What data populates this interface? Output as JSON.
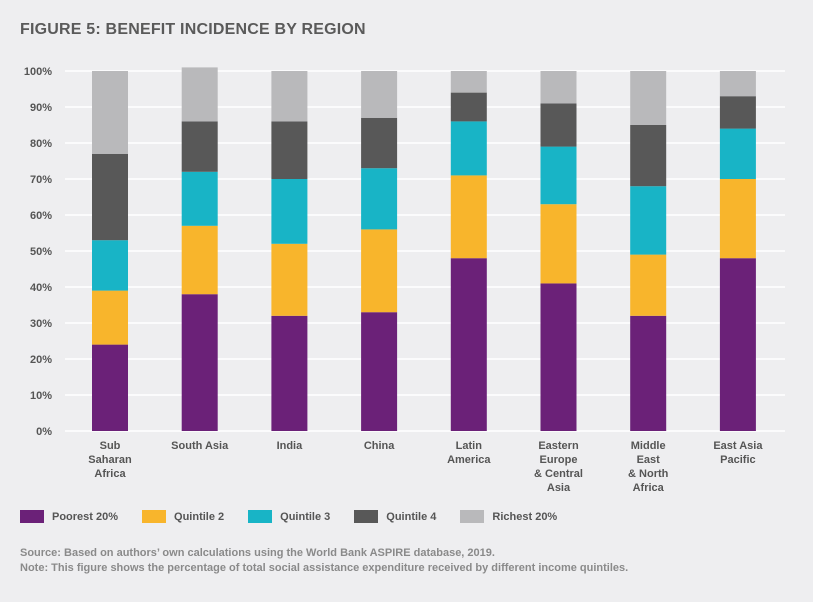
{
  "colors": {
    "background": "#eeeef0",
    "grid": "#ffffff",
    "text": "#555555",
    "note": "#8a8a8a"
  },
  "chart_data": {
    "type": "bar",
    "stacked": true,
    "title": "FIGURE 5: BENEFIT INCIDENCE BY REGION",
    "categories": [
      [
        "Sub",
        "Saharan",
        "Africa"
      ],
      [
        "South Asia"
      ],
      [
        "India"
      ],
      [
        "China"
      ],
      [
        "Latin",
        "America"
      ],
      [
        "Eastern",
        "Europe",
        "& Central",
        "Asia"
      ],
      [
        "Middle",
        "East",
        "& North",
        "Africa"
      ],
      [
        "East Asia",
        "Pacific"
      ]
    ],
    "series": [
      {
        "name": "Poorest 20%",
        "color": "#6b2178",
        "values": [
          24,
          38,
          32,
          33,
          48,
          41,
          32,
          48
        ]
      },
      {
        "name": "Quintile 2",
        "color": "#f8b52c",
        "values": [
          15,
          19,
          20,
          23,
          23,
          22,
          17,
          22
        ]
      },
      {
        "name": "Quintile 3",
        "color": "#18b4c6",
        "values": [
          14,
          15,
          18,
          17,
          15,
          16,
          19,
          14
        ]
      },
      {
        "name": "Quintile 4",
        "color": "#585858",
        "values": [
          24,
          14,
          16,
          14,
          8,
          12,
          17,
          9
        ]
      },
      {
        "name": "Richest 20%",
        "color": "#b9b9bb",
        "values": [
          23,
          15,
          14,
          13,
          6,
          9,
          15,
          7
        ]
      }
    ],
    "ylim": [
      0,
      100
    ],
    "yticks": [
      "0%",
      "10%",
      "20%",
      "30%",
      "40%",
      "50%",
      "60%",
      "70%",
      "80%",
      "90%",
      "100%"
    ],
    "legend_position": "bottom-left",
    "grid": true
  },
  "footer": {
    "source": "Source: Based on authors’ own calculations using the World Bank ASPIRE database, 2019.",
    "note": "Note: This figure shows the percentage of total social assistance expenditure received by different income quintiles."
  }
}
